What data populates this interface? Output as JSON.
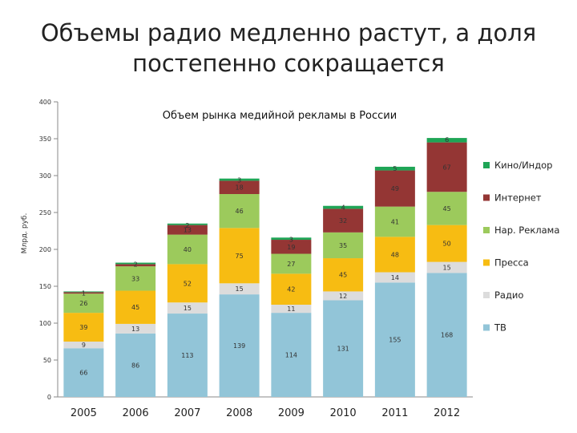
{
  "slide_title_line1": "Объемы радио медленно растут, а доля",
  "slide_title_line2": "постепенно сокращается",
  "chart_data": {
    "type": "bar",
    "stacked": true,
    "title": "Объем рынка медийной рекламы в России",
    "xlabel": "",
    "ylabel": "Млрд. руб.",
    "ylim": [
      0,
      400
    ],
    "yticks": [
      0,
      50,
      100,
      150,
      200,
      250,
      300,
      350,
      400
    ],
    "categories": [
      "2005",
      "2006",
      "2007",
      "2008",
      "2009",
      "2010",
      "2011",
      "2012"
    ],
    "legend_position": "right",
    "series": [
      {
        "name": "ТВ",
        "color": "#92C5D8",
        "values": [
          66,
          86,
          113,
          139,
          114,
          131,
          155,
          168
        ]
      },
      {
        "name": "Радио",
        "color": "#DCDCDC",
        "values": [
          9,
          13,
          15,
          15,
          11,
          12,
          14,
          15
        ]
      },
      {
        "name": "Пресса",
        "color": "#F7BC12",
        "values": [
          39,
          45,
          52,
          75,
          42,
          45,
          48,
          50
        ]
      },
      {
        "name": "Нар. Реклама",
        "color": "#9CCA5C",
        "values": [
          26,
          33,
          40,
          46,
          27,
          35,
          41,
          45
        ]
      },
      {
        "name": "Интернет",
        "color": "#943634",
        "values": [
          2,
          3,
          13,
          18,
          19,
          32,
          49,
          67
        ]
      },
      {
        "name": "Кино/Индор",
        "color": "#1FA556",
        "values": [
          1,
          2,
          2,
          3,
          3,
          4,
          5,
          6
        ]
      }
    ],
    "data_labels": [
      [
        "66",
        "9",
        "39",
        "26",
        "",
        "1"
      ],
      [
        "86",
        "13",
        "45",
        "33",
        "",
        "2"
      ],
      [
        "113",
        "15",
        "52",
        "40",
        "13",
        "2"
      ],
      [
        "139",
        "15",
        "75",
        "46",
        "18",
        "3"
      ],
      [
        "114",
        "11",
        "42",
        "27",
        "19",
        "3"
      ],
      [
        "131",
        "12",
        "45",
        "35",
        "32",
        "4"
      ],
      [
        "155",
        "14",
        "48",
        "41",
        "49",
        "5"
      ],
      [
        "168",
        "15",
        "50",
        "45",
        "67",
        "6"
      ]
    ]
  }
}
